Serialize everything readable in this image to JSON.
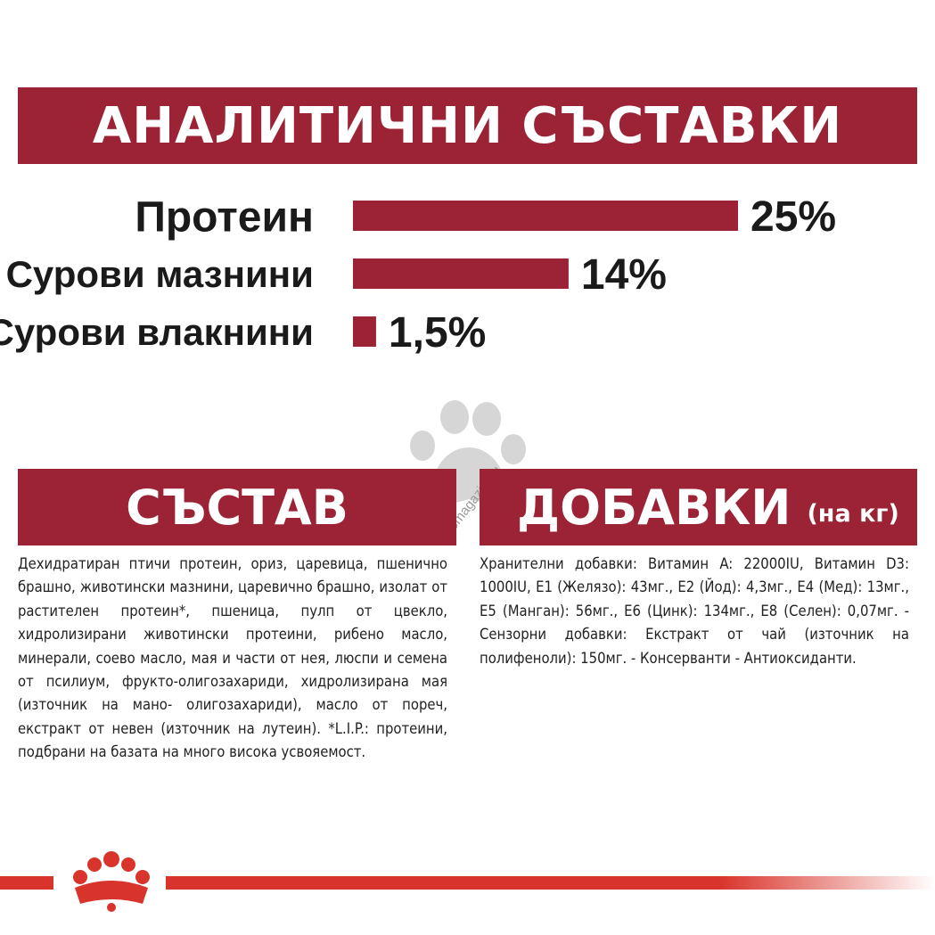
{
  "top_banner": {
    "title": "АНАЛИТИЧНИ СЪСТАВКИ"
  },
  "chart_data": {
    "type": "bar",
    "orientation": "horizontal",
    "categories": [
      "Протеин",
      "Сурови мазнини",
      "Сурови влакнини"
    ],
    "values": [
      25,
      14,
      1.5
    ],
    "value_labels": [
      "25%",
      "14%",
      "1,5%"
    ],
    "bar_color": "#9b2335",
    "xlim": [
      0,
      25
    ],
    "grid": false,
    "legend": false
  },
  "composition": {
    "title": "СЪСТАВ",
    "text": "Дехидратиран птичи протеин, ориз, царевица, пшенично брашно, животински мазнини, царевично брашно, изолат от растителен протеин*, пшеница, пулп от цвекло, хидролизирани животински протеини, рибено масло, минерали, соево масло, мая и части от нея, люспи и семена от псилиум, фрукто-олигозахариди, хидролизирана мая (източник на мано- олигозахариди), масло от пореч, екстракт от невен (източник на лутеин). *L.I.P.: протеини, подбрани на базата на много висока усвояемост."
  },
  "additives": {
    "title": "ДОБАВКИ",
    "title_suffix": "(на кг)",
    "text": "Хранителни добавки: Витамин A: 22000IU, Витамин D3: 1000IU, E1 (Желязо): 43мг., E2 (Йод): 4,3мг., E4 (Мед): 13мг., E5 (Манган): 56мг., E6 (Цинк): 134мг., E8 (Селен): 0,07мг. - Сензорни добавки: Екстракт от чай (източник на полифеноли): 150мг. - Консерванти - Антиоксиданти."
  },
  "watermark": {
    "text": "zoomagazin.eu",
    "icon": "paw-icon"
  },
  "footer": {
    "logo": "crown-icon",
    "line_color": "#d9342b"
  },
  "colors": {
    "accent": "#9b2335",
    "footer_red": "#d9342b"
  }
}
